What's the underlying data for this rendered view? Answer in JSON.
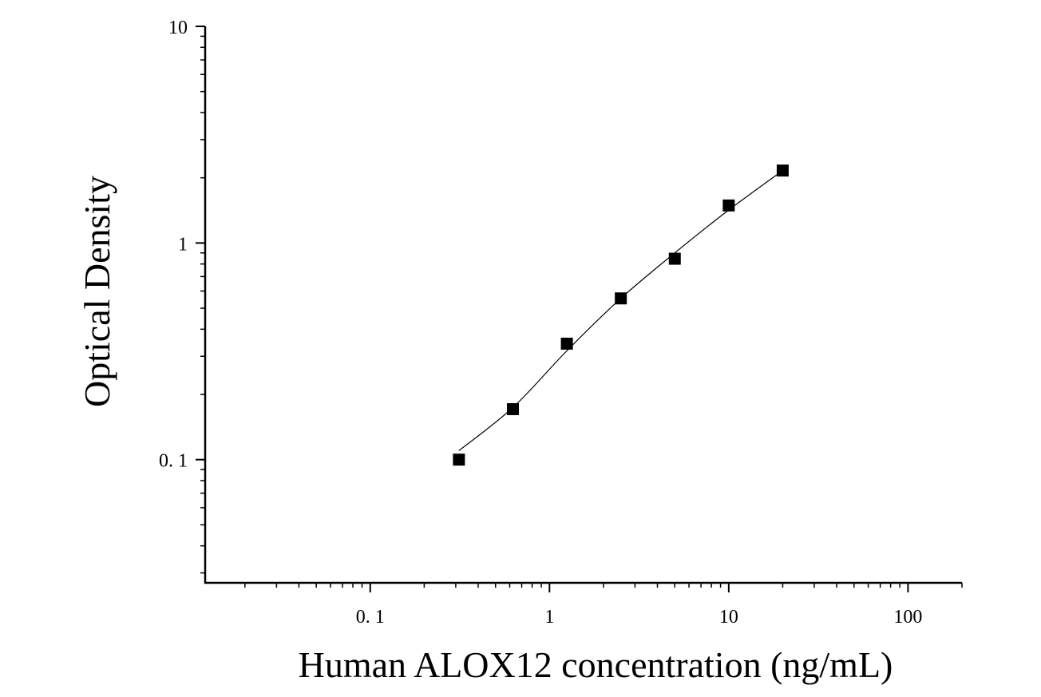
{
  "chart_data": {
    "type": "scatter",
    "xlabel": "Human ALOX12 concentration (ng/mL)",
    "ylabel": "Optical Density",
    "x_scale": "log",
    "y_scale": "log",
    "xlim": [
      0.012,
      200
    ],
    "ylim": [
      0.027,
      10
    ],
    "x_ticks": [
      {
        "value": 0.1,
        "label": "0. 1"
      },
      {
        "value": 1,
        "label": "1"
      },
      {
        "value": 10,
        "label": "10"
      },
      {
        "value": 100,
        "label": "100"
      }
    ],
    "y_ticks": [
      {
        "value": 0.1,
        "label": "0. 1"
      },
      {
        "value": 1,
        "label": "1"
      },
      {
        "value": 10,
        "label": "10"
      }
    ],
    "grid": false,
    "series": [
      {
        "marker": "square",
        "color": "#000000",
        "x": [
          0.3125,
          0.625,
          1.25,
          2.5,
          5,
          10,
          20
        ],
        "y": [
          0.1,
          0.171,
          0.343,
          0.555,
          0.846,
          1.49,
          2.16
        ]
      }
    ],
    "fit_curve": {
      "type": "line",
      "color": "#000000",
      "x": [
        0.3125,
        0.625,
        1.25,
        2.5,
        5,
        10,
        20
      ],
      "y": [
        0.11,
        0.174,
        0.318,
        0.555,
        0.9,
        1.42,
        2.16
      ]
    }
  }
}
